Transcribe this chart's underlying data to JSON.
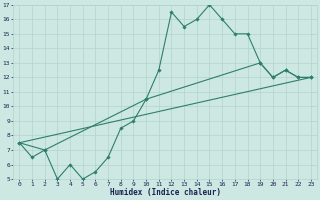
{
  "title": "",
  "xlabel": "Humidex (Indice chaleur)",
  "xlim": [
    -0.5,
    23.5
  ],
  "ylim": [
    5,
    17
  ],
  "xticks": [
    0,
    1,
    2,
    3,
    4,
    5,
    6,
    7,
    8,
    9,
    10,
    11,
    12,
    13,
    14,
    15,
    16,
    17,
    18,
    19,
    20,
    21,
    22,
    23
  ],
  "yticks": [
    5,
    6,
    7,
    8,
    9,
    10,
    11,
    12,
    13,
    14,
    15,
    16,
    17
  ],
  "bg_color": "#cde8e2",
  "grid_color": "#b0d4cc",
  "line_color": "#2e7d6e",
  "line1_x": [
    0,
    1,
    2,
    3,
    4,
    5,
    6,
    7,
    8,
    9,
    10,
    11,
    12,
    13,
    14,
    15,
    16,
    17,
    18,
    19,
    20,
    21,
    22,
    23
  ],
  "line1_y": [
    7.5,
    6.5,
    7.0,
    5.0,
    6.0,
    5.0,
    5.5,
    6.5,
    8.5,
    9.0,
    10.5,
    12.5,
    16.5,
    15.5,
    16.0,
    17.0,
    16.0,
    15.0,
    15.0,
    13.0,
    12.0,
    12.5,
    12.0,
    12.0
  ],
  "line2_x": [
    0,
    2,
    10,
    19,
    20,
    21,
    22,
    23
  ],
  "line2_y": [
    7.5,
    7.0,
    10.5,
    13.0,
    12.0,
    12.5,
    12.0,
    12.0
  ],
  "line3_x": [
    0,
    23
  ],
  "line3_y": [
    7.5,
    12.0
  ]
}
